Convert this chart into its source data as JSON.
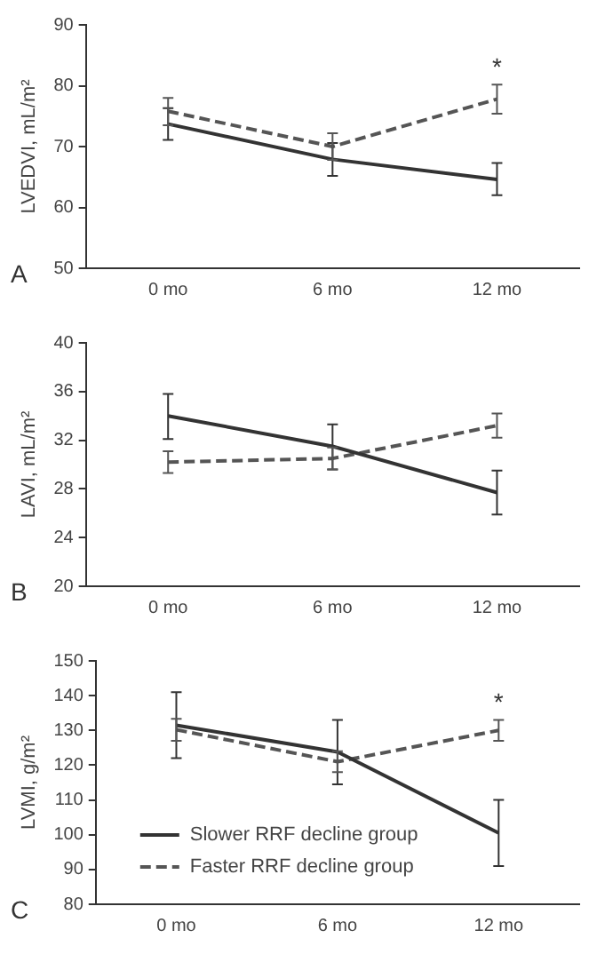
{
  "chart_data": [
    {
      "type": "line",
      "ylabel": "LVEDVI, mL/m²",
      "categories": [
        "0 mo",
        "6 mo",
        "12 mo"
      ],
      "ylim": [
        50,
        90
      ],
      "yticks": [
        50,
        60,
        70,
        80,
        90
      ],
      "grid": false,
      "legend": false,
      "marker": "none",
      "annotations": [
        "A",
        {
          "text": "*",
          "x": "12 mo",
          "y": 77.8
        }
      ],
      "series": [
        {
          "color": "#333333",
          "line_style": "solid",
          "values": [
            73.7,
            67.9,
            64.6
          ],
          "errors": [
            [
              71.1,
              76.3
            ],
            [
              65.2,
              70.6
            ],
            [
              62,
              67.3
            ]
          ]
        },
        {
          "color": "#555555",
          "line_style": "dashed",
          "values": [
            75.8,
            70,
            77.8
          ],
          "errors": [
            [
              73.5,
              78
            ],
            [
              67.8,
              72.2
            ],
            [
              75.4,
              80.2
            ]
          ]
        }
      ]
    },
    {
      "type": "line",
      "ylabel": "LAVI, mL/m²",
      "categories": [
        "0 mo",
        "6 mo",
        "12 mo"
      ],
      "ylim": [
        20,
        40
      ],
      "yticks": [
        20,
        24,
        28,
        32,
        36,
        40
      ],
      "grid": false,
      "legend": false,
      "marker": "none",
      "annotations": [
        "B"
      ],
      "series": [
        {
          "color": "#333333",
          "line_style": "solid",
          "values": [
            34,
            31.5,
            27.7
          ],
          "errors": [
            [
              32.1,
              35.8
            ],
            [
              29.6,
              33.3
            ],
            [
              25.9,
              29.5
            ]
          ]
        },
        {
          "color": "#555555",
          "line_style": "dashed",
          "values": [
            30.2,
            30.5,
            33.2
          ],
          "errors": [
            [
              29.3,
              31.1
            ],
            [
              29.6,
              31.4
            ],
            [
              32.2,
              34.2
            ]
          ]
        }
      ]
    },
    {
      "type": "line",
      "ylabel": "LVMI, g/m²",
      "categories": [
        "0 mo",
        "6 mo",
        "12 mo"
      ],
      "ylim": [
        80,
        150
      ],
      "yticks": [
        80,
        90,
        100,
        110,
        120,
        130,
        140,
        150
      ],
      "grid": false,
      "legend": "bottom left",
      "marker": "none",
      "annotations": [
        "C",
        {
          "text": "*",
          "x": "12 mo",
          "y": 130
        }
      ],
      "series": [
        {
          "name": "Slower RRF decline group",
          "color": "#333333",
          "line_style": "solid",
          "values": [
            131.5,
            123.8,
            100.5
          ],
          "errors": [
            [
              122,
              141
            ],
            [
              114.5,
              133
            ],
            [
              91,
              110
            ]
          ]
        },
        {
          "name": "Faster RRF decline group",
          "color": "#555555",
          "line_style": "dashed",
          "values": [
            130.2,
            121,
            130
          ],
          "errors": [
            [
              127,
              133.3
            ],
            [
              118,
              124
            ],
            [
              127,
              133
            ]
          ]
        }
      ]
    }
  ]
}
